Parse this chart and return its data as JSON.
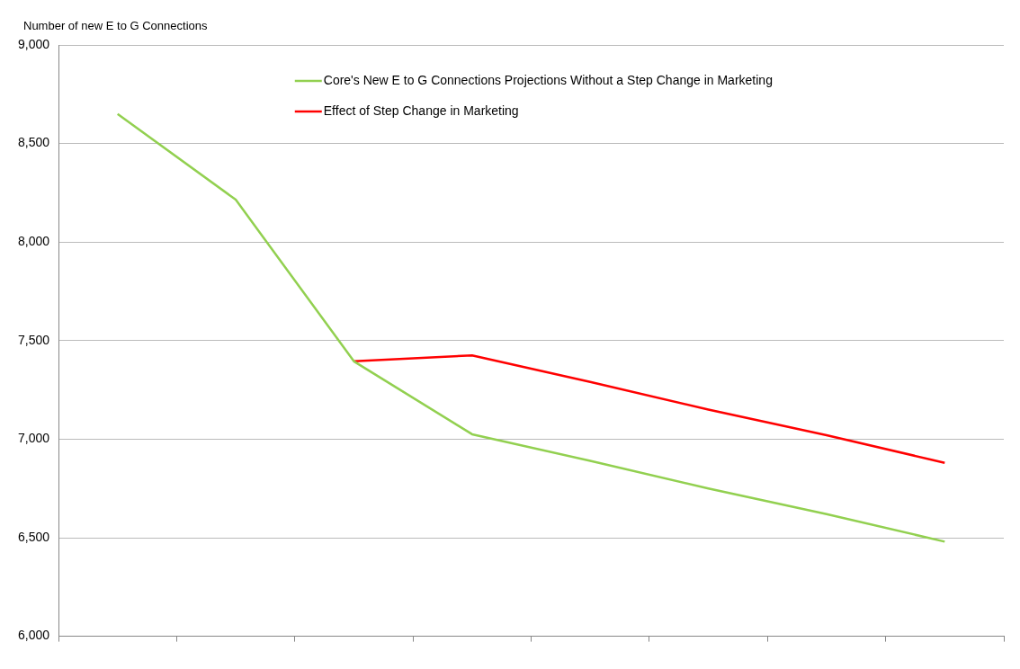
{
  "chart_data": {
    "type": "line",
    "ylabel": "Number of new E to G Connections",
    "categories": [
      null,
      null,
      null,
      null,
      null,
      null,
      null,
      null
    ],
    "series": [
      {
        "name": "Core's New E to G Connections Projections Without a Step Change in Marketing",
        "color": "#92d050",
        "values": [
          8650,
          8215,
          7395,
          7025,
          6890,
          6750,
          6620,
          6480
        ]
      },
      {
        "name": "Effect of Step Change in Marketing",
        "color": "#ff0000",
        "values": [
          null,
          null,
          7395,
          7425,
          7290,
          7150,
          7020,
          6880
        ]
      }
    ],
    "ylim": [
      6000,
      9000
    ],
    "yticks": [
      {
        "value": 6000,
        "label": "6,000"
      },
      {
        "value": 6500,
        "label": "6,500"
      },
      {
        "value": 7000,
        "label": "7,000"
      },
      {
        "value": 7500,
        "label": "7,500"
      },
      {
        "value": 8000,
        "label": "8,000"
      },
      {
        "value": 8500,
        "label": "8,500"
      },
      {
        "value": 9000,
        "label": "9,000"
      }
    ],
    "grid": "y",
    "legend": "top",
    "marker": "none",
    "line_style": "solid"
  }
}
